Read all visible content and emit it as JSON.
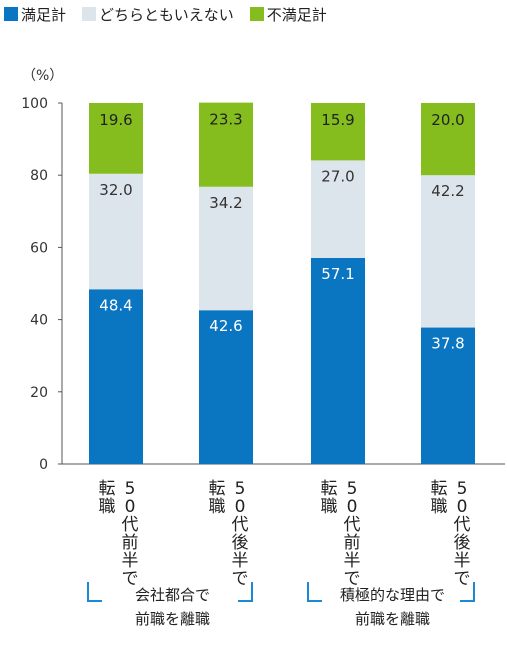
{
  "legend": [
    {
      "label": "満足計",
      "color": "#0a76c2"
    },
    {
      "label": "どちらともいえない",
      "color": "#dde5ec"
    },
    {
      "label": "不満足計",
      "color": "#85bd1f"
    }
  ],
  "chart_data": {
    "type": "bar",
    "stacked": true,
    "unit_label": "（%）",
    "ylim": [
      0,
      100
    ],
    "yticks": [
      0,
      20,
      40,
      60,
      80,
      100
    ],
    "categories": [
      {
        "col1": "転職",
        "col2": "50代前半で"
      },
      {
        "col1": "転職",
        "col2": "50代後半で"
      },
      {
        "col1": "転職",
        "col2": "50代前半で"
      },
      {
        "col1": "転職",
        "col2": "50代後半で"
      }
    ],
    "series": [
      {
        "name": "満足計",
        "color": "#0a76c2",
        "label_color": "#ffffff",
        "values": [
          48.4,
          42.6,
          57.1,
          37.8
        ]
      },
      {
        "name": "どちらともいえない",
        "color": "#dde5ec",
        "label_color": "#333333",
        "values": [
          32.0,
          34.2,
          27.0,
          42.2
        ]
      },
      {
        "name": "不満足計",
        "color": "#85bd1f",
        "label_color": "#222222",
        "values": [
          19.6,
          23.3,
          15.9,
          20.0
        ]
      }
    ],
    "groups": [
      {
        "line1": "会社都合で",
        "line2": "前職を離職"
      },
      {
        "line1": "積極的な理由で",
        "line2": "前職を離職"
      }
    ],
    "bracket_color": "#1a8ad4"
  }
}
